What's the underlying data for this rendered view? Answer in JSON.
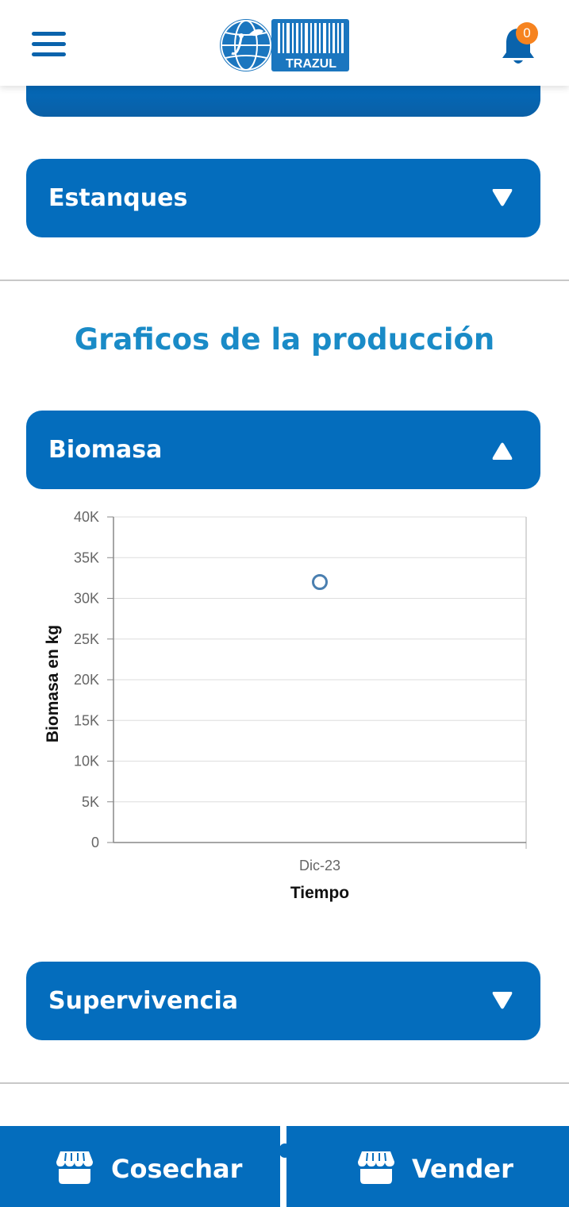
{
  "header": {
    "logo_text": "TRAZUL",
    "notification_count": "0",
    "colors": {
      "brand": "#0a63ac",
      "badge": "#f6831f"
    }
  },
  "accordions": {
    "estanques": {
      "label": "Estanques",
      "state": "collapsed"
    },
    "biomasa": {
      "label": "Biomasa",
      "state": "expanded"
    },
    "supervivencia": {
      "label": "Supervivencia",
      "state": "collapsed"
    }
  },
  "section": {
    "title": "Graficos de la producción"
  },
  "chart_data": {
    "type": "scatter",
    "title": "",
    "xlabel": "Tiempo",
    "ylabel": "Biomasa en kg",
    "categories": [
      "Dic-23"
    ],
    "series": [
      {
        "values": [
          32000
        ]
      }
    ],
    "ylim": [
      0,
      40000
    ],
    "yticks": [
      "0",
      "5K",
      "10K",
      "15K",
      "20K",
      "25K",
      "30K",
      "35K",
      "40K"
    ],
    "grid": true,
    "legend": "none"
  },
  "bottom_nav": {
    "cosechar": {
      "label": "Cosechar",
      "icon": "store-icon"
    },
    "vender": {
      "label": "Vender",
      "icon": "store-icon"
    }
  }
}
